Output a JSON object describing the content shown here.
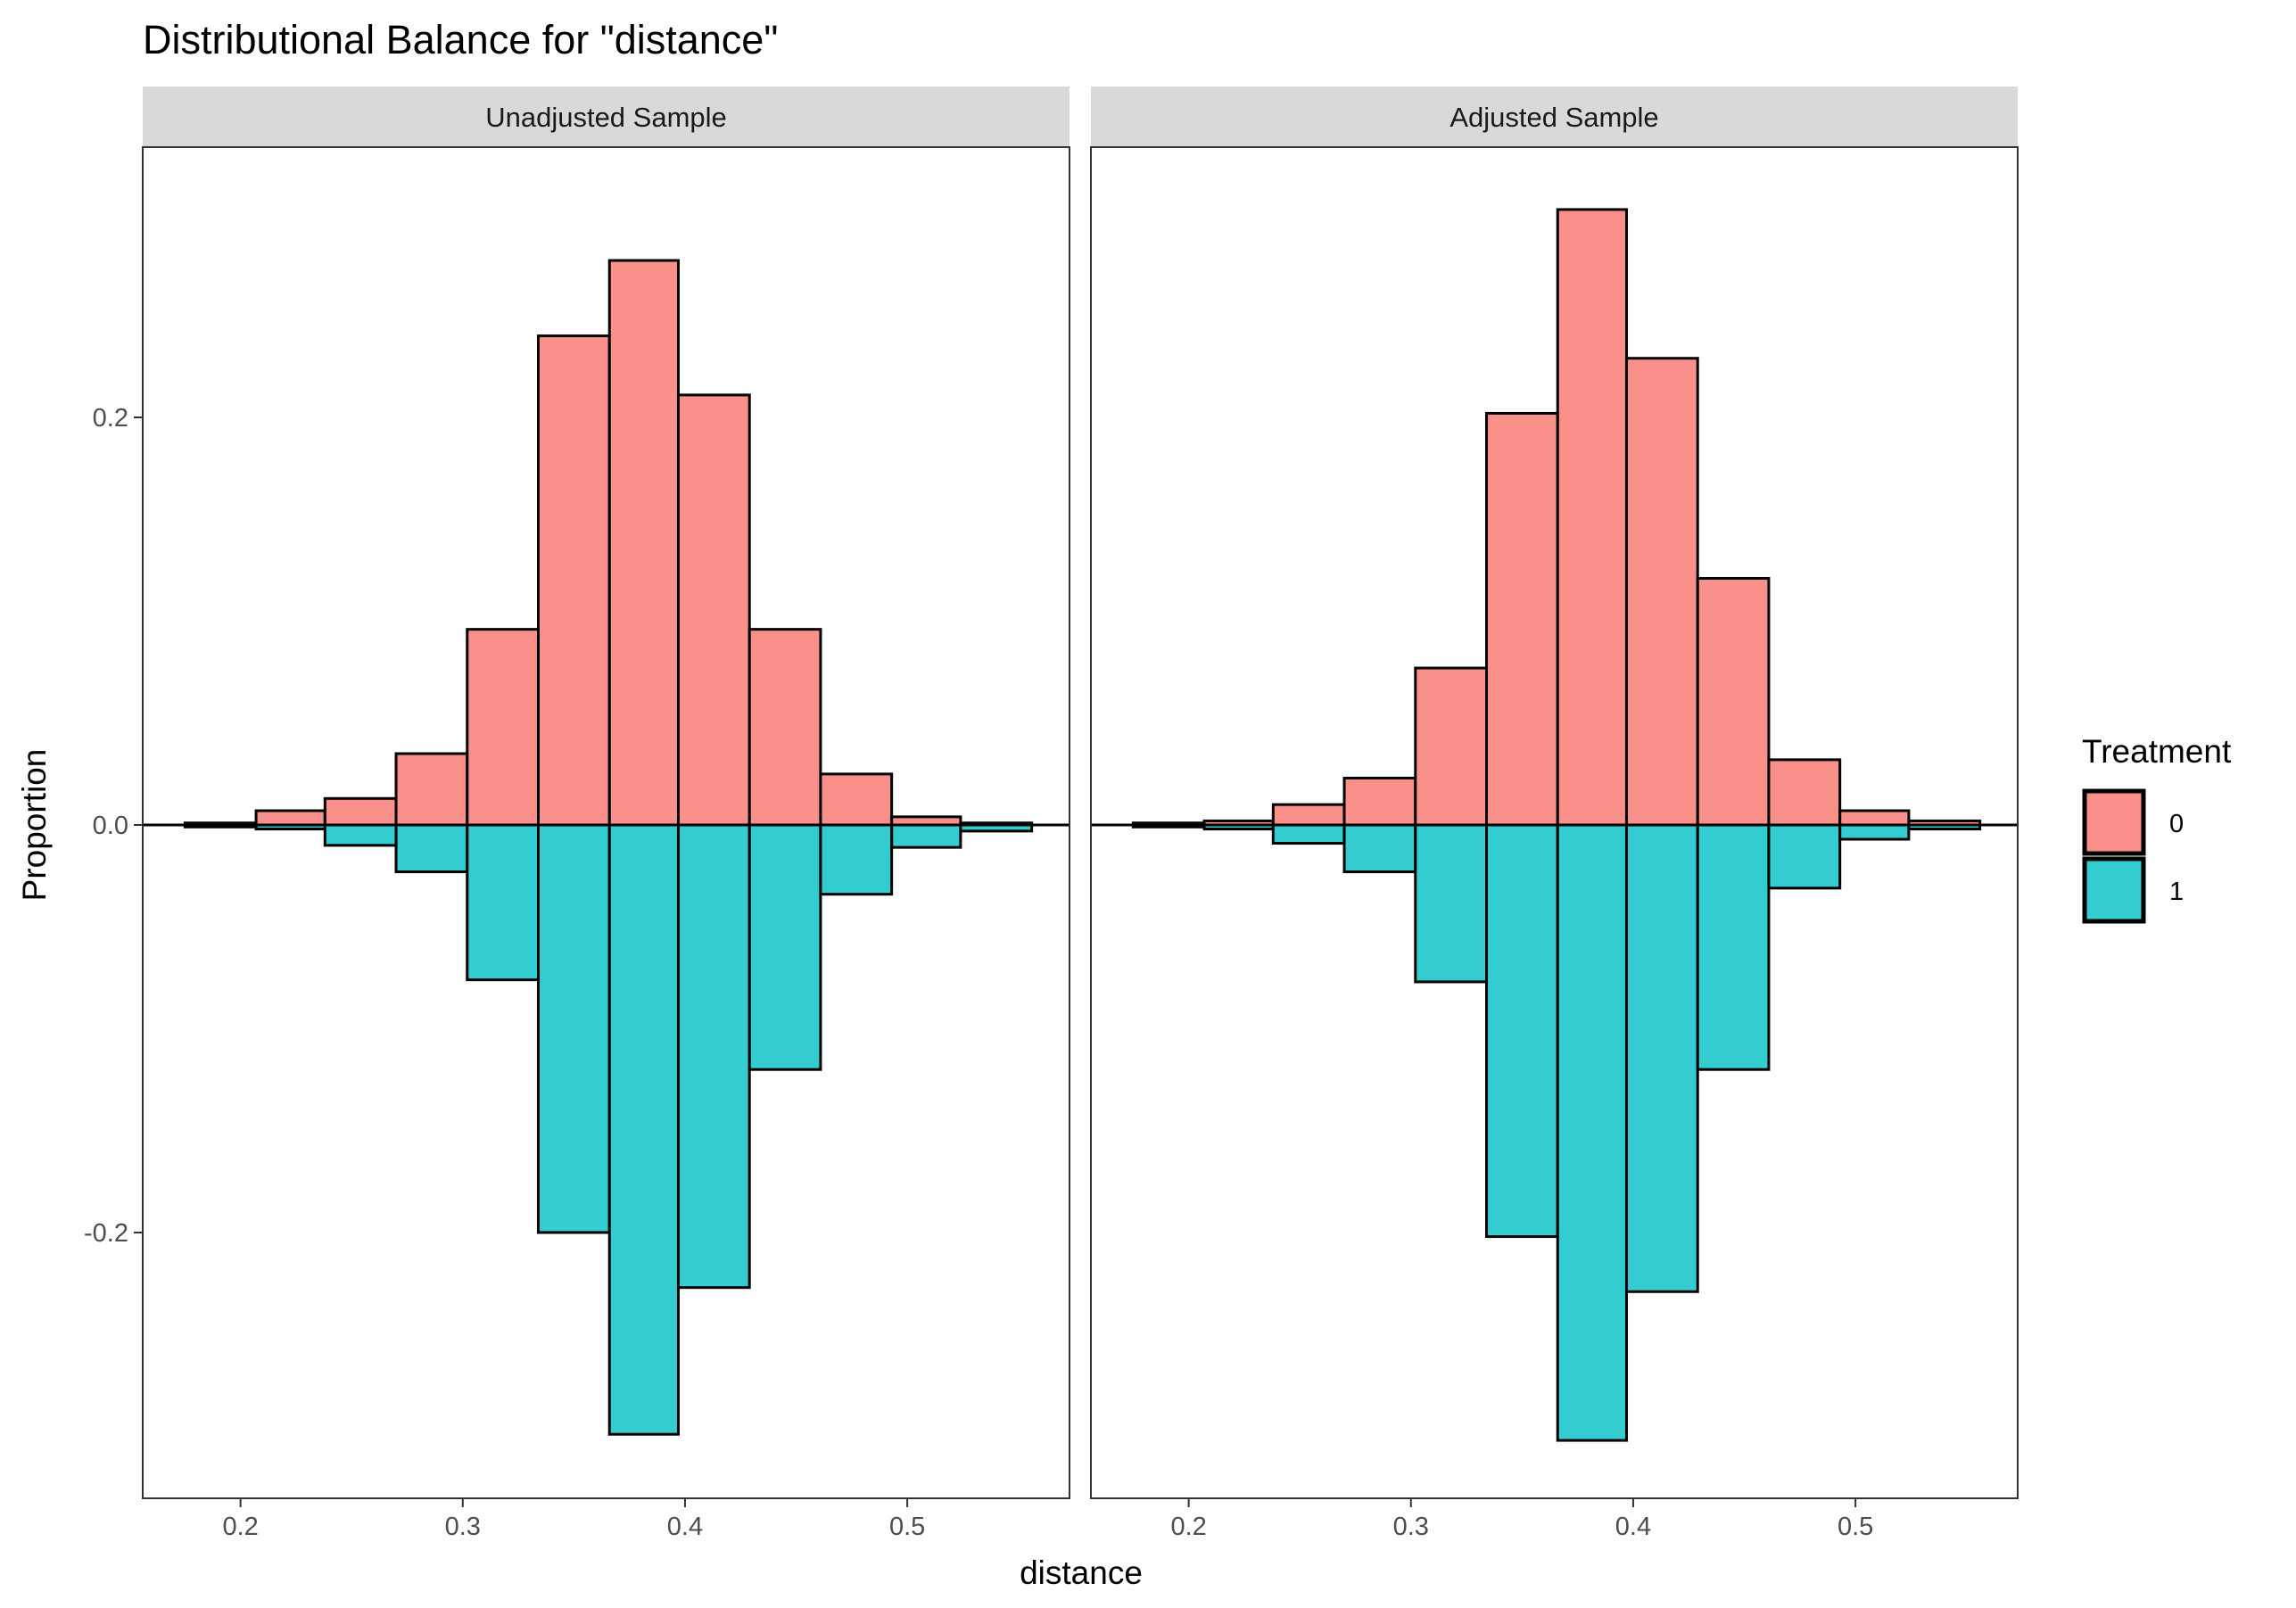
{
  "chart_data": {
    "type": "bar",
    "title": "Distributional Balance for \"distance\"",
    "xlabel": "distance",
    "ylabel": "Proportion",
    "xlim": [
      0.156,
      0.573
    ],
    "ylim": [
      -0.33,
      0.33
    ],
    "x_ticks": [
      0.2,
      0.3,
      0.4,
      0.5
    ],
    "x_tick_labels": [
      "0.2",
      "0.3",
      "0.4",
      "0.5"
    ],
    "y_ticks": [
      -0.2,
      0.0,
      0.2
    ],
    "y_tick_labels": [
      "-0.2",
      "0.0",
      "0.2"
    ],
    "grid": false,
    "legend": {
      "title": "Treatment",
      "position": "right",
      "entries": [
        {
          "label": "0",
          "color": "#F8766D"
        },
        {
          "label": "1",
          "color": "#00BFC4"
        }
      ]
    },
    "bin_edges": [
      0.175,
      0.207,
      0.238,
      0.27,
      0.302,
      0.334,
      0.366,
      0.397,
      0.429,
      0.461,
      0.493,
      0.524,
      0.556
    ],
    "panels": [
      {
        "strip": "Unadjusted Sample",
        "series": [
          {
            "treatment": "0",
            "values": [
              0.001,
              0.007,
              0.013,
              0.035,
              0.096,
              0.24,
              0.277,
              0.211,
              0.096,
              0.025,
              0.004,
              0.001
            ]
          },
          {
            "treatment": "1",
            "values": [
              -0.001,
              -0.002,
              -0.01,
              -0.023,
              -0.076,
              -0.2,
              -0.299,
              -0.227,
              -0.12,
              -0.034,
              -0.011,
              -0.003
            ]
          }
        ]
      },
      {
        "strip": "Adjusted Sample",
        "series": [
          {
            "treatment": "0",
            "values": [
              0.001,
              0.002,
              0.01,
              0.023,
              0.077,
              0.202,
              0.302,
              0.229,
              0.121,
              0.032,
              0.007,
              0.002
            ]
          },
          {
            "treatment": "1",
            "values": [
              -0.001,
              -0.002,
              -0.009,
              -0.023,
              -0.077,
              -0.202,
              -0.302,
              -0.229,
              -0.12,
              -0.031,
              -0.007,
              -0.002
            ]
          }
        ]
      }
    ]
  }
}
